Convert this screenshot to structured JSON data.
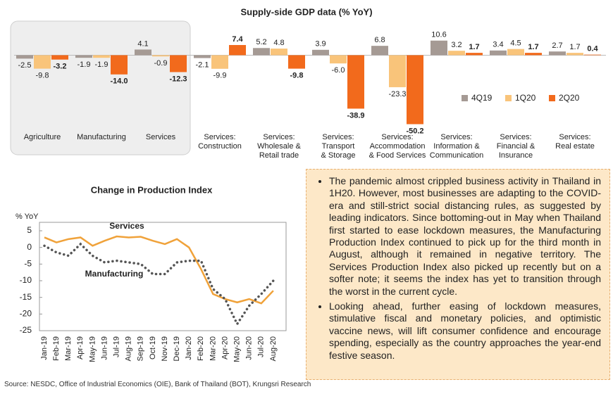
{
  "chart_data": [
    {
      "type": "bar",
      "title": "Supply-side GDP data (% YoY)",
      "categories": [
        "Agriculture",
        "Manufacturing",
        "Services",
        "Services:\nConstruction",
        "Services:\nWholesale &\nRetail trade",
        "Services:\nTransport\n& Storage",
        "Services:\nAccommodation\n& Food Services",
        "Services:\nInformation &\nCommunication",
        "Services:\nFinancial &\nInsurance",
        "Services:\nReal estate"
      ],
      "series": [
        {
          "name": "4Q19",
          "color": "#a59a94",
          "values": [
            -2.5,
            -1.9,
            4.1,
            -2.1,
            5.2,
            3.9,
            6.8,
            10.6,
            3.4,
            2.7
          ],
          "value_labels": [
            "-2.5",
            "-1.9",
            "4.1",
            "-2.1",
            "5.2",
            "3.9",
            "6.8",
            "10.6",
            "3.4",
            "2.7"
          ]
        },
        {
          "name": "1Q20",
          "color": "#f9c47a",
          "values": [
            -9.8,
            -1.9,
            -0.9,
            -9.9,
            4.8,
            -6.0,
            -23.3,
            3.2,
            4.5,
            1.7
          ],
          "value_labels": [
            "-9.8",
            "-1.9",
            "-0.9",
            "-9.9",
            "4.8",
            "-6.0",
            "-23.3",
            "3.2",
            "4.5",
            "1.7"
          ]
        },
        {
          "name": "2Q20",
          "color": "#f26a1c",
          "values": [
            -3.2,
            -14.0,
            -12.3,
            7.4,
            -9.8,
            -38.9,
            -50.2,
            1.7,
            1.7,
            0.4
          ],
          "value_labels": [
            "-3.2",
            "-14.0",
            "-12.3",
            "7.4",
            "-9.8",
            "-38.9",
            "-50.2",
            "1.7",
            "1.7",
            "0.4"
          ]
        }
      ],
      "ylim": [
        -52,
        12
      ],
      "legend": "right"
    },
    {
      "type": "line",
      "title": "Change in  Production Index",
      "y_label": "% YoY",
      "categories": [
        "Jan-19",
        "Feb-19",
        "Mar-19",
        "Apr-19",
        "May-19",
        "Jun-19",
        "Jul-19",
        "Aug-19",
        "Sep-19",
        "Oct-19",
        "Nov-19",
        "Dec-19",
        "Jan-20",
        "Feb-20",
        "Mar-20",
        "Apr-20",
        "May-20",
        "Jun-20",
        "Jul-20",
        "Aug-20"
      ],
      "series": [
        {
          "name": "Services",
          "color": "#f0a23a",
          "values": [
            3,
            1.5,
            2.5,
            3,
            0.5,
            2,
            3.3,
            3,
            3.2,
            2,
            1,
            2.5,
            0,
            -6.5,
            -14,
            -15.5,
            -16.5,
            -15.5,
            -16.8,
            -13
          ]
        },
        {
          "name": "Manufacturing",
          "color": "#555555",
          "values": [
            0.5,
            -1.5,
            -2.5,
            1,
            -2.5,
            -4.5,
            -4,
            -4.5,
            -5,
            -8,
            -8,
            -4.5,
            -4,
            -4,
            -12.5,
            -15.5,
            -23,
            -17.5,
            -14,
            -10
          ]
        }
      ],
      "ylim": [
        -25,
        5
      ],
      "yticks": [
        5,
        0,
        -5,
        -10,
        -15,
        -20,
        -25
      ]
    }
  ],
  "notes": [
    "The pandemic almost crippled business activity in Thailand in 1H20. However, most businesses are adapting to the COVID-era and still-strict social distancing rules, as suggested by leading indicators. Since bottoming-out in May when Thailand first started to ease lockdown measures, the Manufacturing Production Index continued to pick up for the third month in August, although it remained in negative territory. The Services Production Index also picked up recently but on a softer note; it seems the index has yet to transition through the worst in the current cycle.",
    "Looking ahead, further easing of lockdown measures, stimulative fiscal and monetary policies, and optimistic vaccine news, will lift consumer confidence and encourage spending, especially as the country approaches the year-end festive season."
  ],
  "source": "Source: NESDC, Office of Industrial Economics (OIE), Bank of Thailand (BOT), Krungsri Research"
}
